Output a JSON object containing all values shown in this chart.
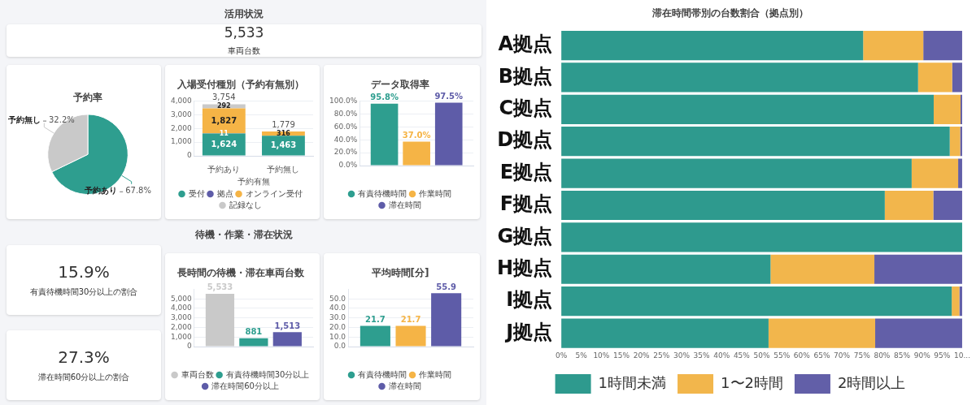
{
  "chart_data": [
    {
      "type": "other",
      "title": "活用状況",
      "annotations": [
        "5,533",
        "車両台数"
      ]
    },
    {
      "type": "pie",
      "title": "予約率",
      "categories": [
        "予約あり",
        "予約無し"
      ],
      "values": [
        67.8,
        32.2
      ],
      "colors": [
        "#2e9e8f",
        "#c9c9c9"
      ],
      "value_labels": [
        "67.8%",
        "32.2%"
      ],
      "legend": false
    },
    {
      "type": "bar",
      "title": "入場受付種別（予約有無別）",
      "xlabel": "予約有無",
      "categories": [
        "予約あり",
        "予約無し"
      ],
      "stacked": true,
      "ylim": [
        0,
        4000
      ],
      "yticks": [
        0,
        {
          "value": 1000,
          "label": "1,000"
        },
        {
          "value": 2000,
          "label": "2,000"
        },
        {
          "value": 3000,
          "label": "3,000"
        },
        {
          "value": 4000,
          "label": "4,000"
        }
      ],
      "grid": "y",
      "legend": "bottom",
      "totals": [
        "3,754",
        "1,779"
      ],
      "series": [
        {
          "name": "受付",
          "color": "#2e9e8f",
          "values": [
            1624,
            1463
          ],
          "value_labels": [
            "1,624",
            "1,463"
          ]
        },
        {
          "name": "拠点",
          "color": "#5e5ca8",
          "values": [
            11,
            null
          ],
          "value_labels": [
            "11",
            null
          ]
        },
        {
          "name": "オンライン受付",
          "color": "#f5b446",
          "values": [
            1827,
            316
          ],
          "value_labels": [
            "1,827",
            "316"
          ]
        },
        {
          "name": "記録なし",
          "color": "#c9c9c9",
          "values": [
            292,
            null
          ],
          "value_labels": [
            "292",
            null
          ]
        }
      ]
    },
    {
      "type": "bar",
      "title": "データ取得率",
      "categories": [
        null
      ],
      "ylim": [
        0,
        100
      ],
      "yticks": [
        {
          "value": 0,
          "label": "0.0%"
        },
        {
          "value": 20,
          "label": "20.0%"
        },
        {
          "value": 40,
          "label": "40.0%"
        },
        {
          "value": 60,
          "label": "60.0%"
        },
        {
          "value": 80,
          "label": "80.0%"
        },
        {
          "value": 100,
          "label": "100.0%"
        }
      ],
      "grid": "y",
      "legend": "bottom",
      "series": [
        {
          "name": "有責待機時間",
          "color": "#2e9e8f",
          "values": [
            95.8
          ],
          "value_labels": [
            "95.8%"
          ]
        },
        {
          "name": "作業時間",
          "color": "#f5b446",
          "values": [
            37.0
          ],
          "value_labels": [
            "37.0%"
          ]
        },
        {
          "name": "滞在時間",
          "color": "#5e5ca8",
          "values": [
            97.5
          ],
          "value_labels": [
            "97.5%"
          ]
        }
      ]
    },
    {
      "type": "other",
      "title": "待機・作業・滞在状況",
      "annotations": [
        "15.9%",
        "有責待機時間30分以上の割合"
      ]
    },
    {
      "type": "other",
      "annotations": [
        "27.3%",
        "滞在時間60分以上の割合"
      ]
    },
    {
      "type": "bar",
      "title": "長時間の待機・滞在車両台数",
      "categories": [
        null
      ],
      "ylim": [
        0,
        6000
      ],
      "yticks": [
        0,
        {
          "value": 1000,
          "label": "1,000"
        },
        {
          "value": 2000,
          "label": "2,000"
        },
        {
          "value": 3000,
          "label": "3,000"
        },
        {
          "value": 4000,
          "label": "4,000"
        },
        {
          "value": 5000,
          "label": "5,000"
        }
      ],
      "grid": "y",
      "legend": "bottom",
      "series": [
        {
          "name": "車両台数",
          "color": "#c9c9c9",
          "values": [
            5533
          ],
          "value_labels": [
            "5,533"
          ]
        },
        {
          "name": "有責待機時間30分以上",
          "color": "#2e9e8f",
          "values": [
            881
          ],
          "value_labels": [
            "881"
          ]
        },
        {
          "name": "滞在時間60分以上",
          "color": "#5e5ca8",
          "values": [
            1513
          ],
          "value_labels": [
            "1,513"
          ]
        }
      ]
    },
    {
      "type": "bar",
      "title": "平均時間[分]",
      "categories": [
        null
      ],
      "ylim": [
        0,
        60
      ],
      "yticks": [
        {
          "value": 0,
          "label": "0.0"
        },
        {
          "value": 10,
          "label": "10.0"
        },
        {
          "value": 20,
          "label": "20.0"
        },
        {
          "value": 30,
          "label": "30.0"
        },
        {
          "value": 40,
          "label": "40.0"
        },
        {
          "value": 50,
          "label": "50.0"
        }
      ],
      "grid": "y",
      "legend": "bottom",
      "data_labels": true,
      "series": [
        {
          "name": "有責待機時間",
          "color": "#2e9e8f",
          "values": [
            21.7
          ]
        },
        {
          "name": "作業時間",
          "color": "#f5b446",
          "values": [
            21.7
          ]
        },
        {
          "name": "滞在時間",
          "color": "#5e5ca8",
          "values": [
            55.9
          ]
        }
      ]
    },
    {
      "type": "bar",
      "title": "滞在時間帯別の台数割合（拠点別）",
      "orientation": "horizontal",
      "stacked": true,
      "categories": [
        "A拠点",
        "B拠点",
        "C拠点",
        "D拠点",
        "E拠点",
        "F拠点",
        "G拠点",
        "H拠点",
        "I拠点",
        "J拠点"
      ],
      "xlim": [
        0,
        100
      ],
      "xticks": [
        {
          "value": 0,
          "label": "0%"
        },
        {
          "value": 5,
          "label": "5%"
        },
        {
          "value": 10,
          "label": "10%"
        },
        {
          "value": 15,
          "label": "15%"
        },
        {
          "value": 20,
          "label": "20%"
        },
        {
          "value": 25,
          "label": "25%"
        },
        {
          "value": 30,
          "label": "30%"
        },
        {
          "value": 35,
          "label": "35%"
        },
        {
          "value": 40,
          "label": "40%"
        },
        {
          "value": 45,
          "label": "45%"
        },
        {
          "value": 50,
          "label": "50%"
        },
        {
          "value": 55,
          "label": "55%"
        },
        {
          "value": 60,
          "label": "60%"
        },
        {
          "value": 65,
          "label": "65%"
        },
        {
          "value": 70,
          "label": "70%"
        },
        {
          "value": 75,
          "label": "75%"
        },
        {
          "value": 80,
          "label": "80%"
        },
        {
          "value": 85,
          "label": "85%"
        },
        {
          "value": 90,
          "label": "90%"
        },
        {
          "value": 95,
          "label": "95%"
        },
        {
          "value": 100,
          "label": "10..."
        }
      ],
      "legend": "bottom",
      "series": [
        {
          "name": "1時間未満",
          "color": "#2e9a8e",
          "values": [
            75.3,
            89.0,
            92.9,
            96.9,
            87.4,
            80.7,
            100,
            52.2,
            97.4,
            51.7
          ]
        },
        {
          "name": "1〜2時間",
          "color": "#f2b64c",
          "values": [
            15.0,
            8.5,
            6.7,
            2.6,
            11.6,
            12.1,
            0,
            25.9,
            1.9,
            26.6
          ]
        },
        {
          "name": "2時間以上",
          "color": "#625fa8",
          "values": [
            9.7,
            2.5,
            0.4,
            0.5,
            1.0,
            7.2,
            0,
            21.9,
            0.7,
            21.7
          ]
        }
      ]
    }
  ]
}
